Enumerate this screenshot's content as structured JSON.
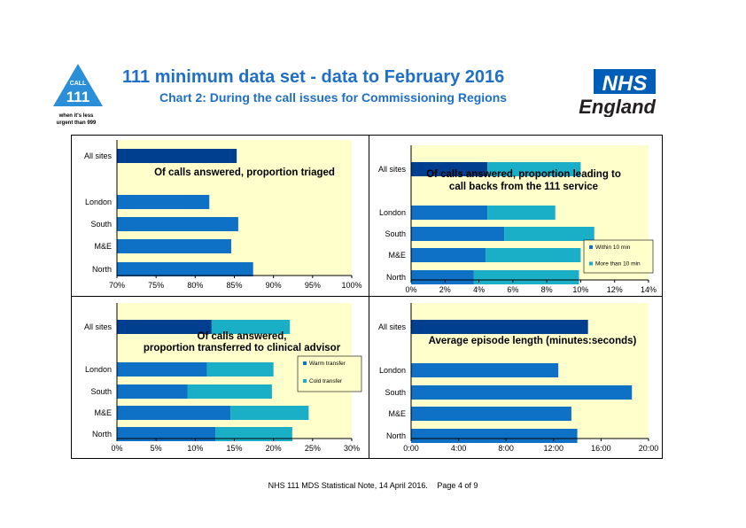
{
  "header": {
    "title": "111 minimum data set - data to February 2016",
    "subtitle": "Chart 2: During the call issues for Commissioning Regions",
    "logo_111": {
      "call": "CALL",
      "number": "111",
      "tagline_1": "when it's less",
      "tagline_2": "urgent than 999"
    },
    "nhs_logo": {
      "nhs": "NHS",
      "england": "England"
    }
  },
  "footer": {
    "note": "NHS 111 MDS Statistical Note, 14 April 2016.",
    "page": "Page 4 of 9"
  },
  "colors": {
    "dark_blue": "#003f8f",
    "mid_blue": "#0f71c6",
    "teal": "#1aafc6",
    "plot_bg": "#ffffcc",
    "title_blue": "#1f6fc7",
    "nhs_blue": "#005eb8"
  },
  "chart_data": [
    {
      "type": "bar",
      "orientation": "horizontal",
      "title": "Of calls answered, proportion triaged",
      "categories": [
        "All sites",
        "London",
        "South",
        "M&E",
        "North"
      ],
      "series": [
        {
          "values": [
            85.3,
            81.8,
            85.5,
            84.6,
            87.4
          ]
        }
      ],
      "xlim": [
        70,
        100
      ],
      "xticks": [
        "70%",
        "75%",
        "80%",
        "85%",
        "90%",
        "95%",
        "100%"
      ],
      "grid": false
    },
    {
      "type": "bar",
      "orientation": "horizontal",
      "stacked": true,
      "title": "Of calls answered, proportion leading to call backs from the 111 service",
      "categories": [
        "All sites",
        "London",
        "South",
        "M&E",
        "North"
      ],
      "series": [
        {
          "name": "Within 10 min",
          "values": [
            4.5,
            4.5,
            5.5,
            4.4,
            3.7
          ]
        },
        {
          "name": "More than 10 min",
          "values": [
            5.5,
            4.0,
            5.3,
            5.6,
            6.2
          ]
        }
      ],
      "xlim": [
        0,
        14
      ],
      "xticks": [
        "0%",
        "2%",
        "4%",
        "6%",
        "8%",
        "10%",
        "12%",
        "14%"
      ],
      "legend": "bottom-right",
      "grid": false
    },
    {
      "type": "bar",
      "orientation": "horizontal",
      "stacked": true,
      "title": "Of calls answered, proportion transferred to clinical advisor",
      "categories": [
        "All sites",
        "London",
        "South",
        "M&E",
        "North"
      ],
      "series": [
        {
          "name": "Warm transfer",
          "values": [
            12.1,
            11.5,
            9.0,
            14.5,
            12.6
          ]
        },
        {
          "name": "Cold transfer",
          "values": [
            10.0,
            8.5,
            10.8,
            10.0,
            9.8
          ]
        }
      ],
      "xlim": [
        0,
        30
      ],
      "xticks": [
        "0%",
        "5%",
        "10%",
        "15%",
        "20%",
        "25%",
        "30%"
      ],
      "legend": "right",
      "grid": false
    },
    {
      "type": "bar",
      "orientation": "horizontal",
      "title": "Average episode length (minutes:seconds)",
      "categories": [
        "All sites",
        "London",
        "South",
        "M&E",
        "North"
      ],
      "series": [
        {
          "values": [
            14.9,
            12.4,
            18.6,
            13.5,
            14.0
          ]
        }
      ],
      "xlim": [
        0,
        20
      ],
      "xticks": [
        "0:00",
        "4:00",
        "8:00",
        "12:00",
        "16:00",
        "20:00"
      ],
      "grid": false
    }
  ]
}
